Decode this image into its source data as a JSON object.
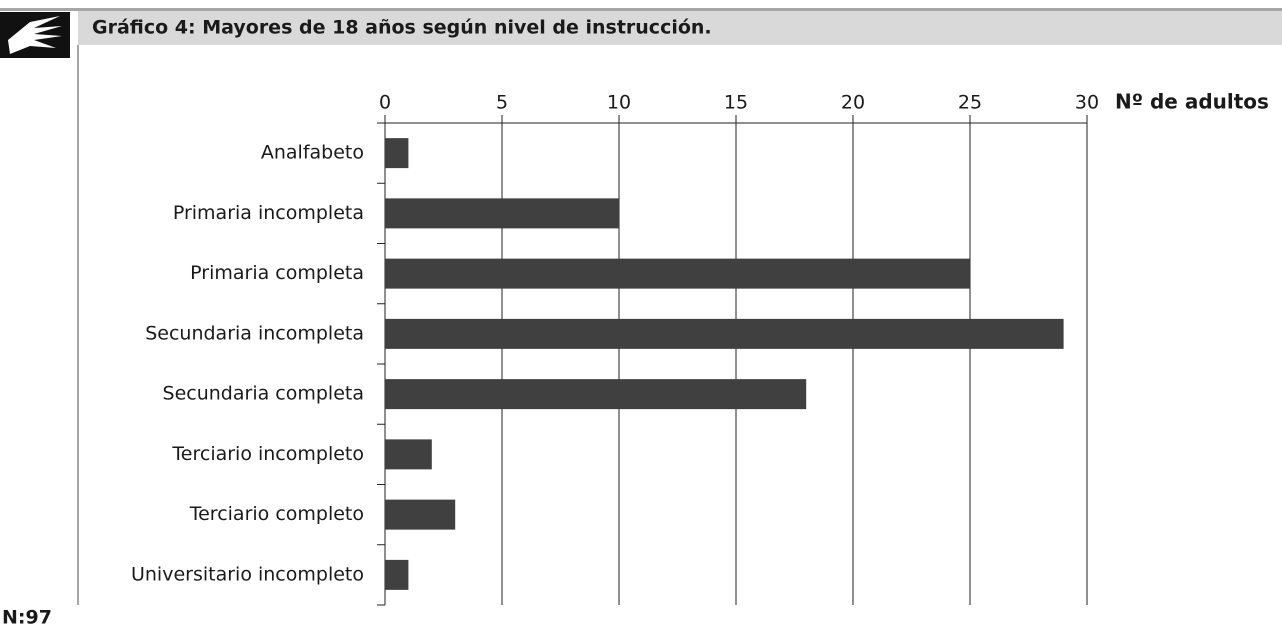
{
  "chart_data": {
    "type": "bar",
    "orientation": "horizontal",
    "title": "Gráfico 4: Mayores de 18 años según nivel de instrucción.",
    "x_label": "Nº de adultos",
    "categories": [
      "Analfabeto",
      "Primaria incompleta",
      "Primaria completa",
      "Secundaria incompleta",
      "Secundaria completa",
      "Terciario incompleto",
      "Terciario completo",
      "Universitario incompleto"
    ],
    "values": [
      1,
      10,
      25,
      29,
      18,
      2,
      3,
      1
    ],
    "color": "#404040",
    "xlim": [
      0,
      30
    ],
    "xticks": [
      0,
      5,
      10,
      15,
      20,
      25,
      30
    ],
    "grid": true,
    "sample_size": "N:97"
  }
}
